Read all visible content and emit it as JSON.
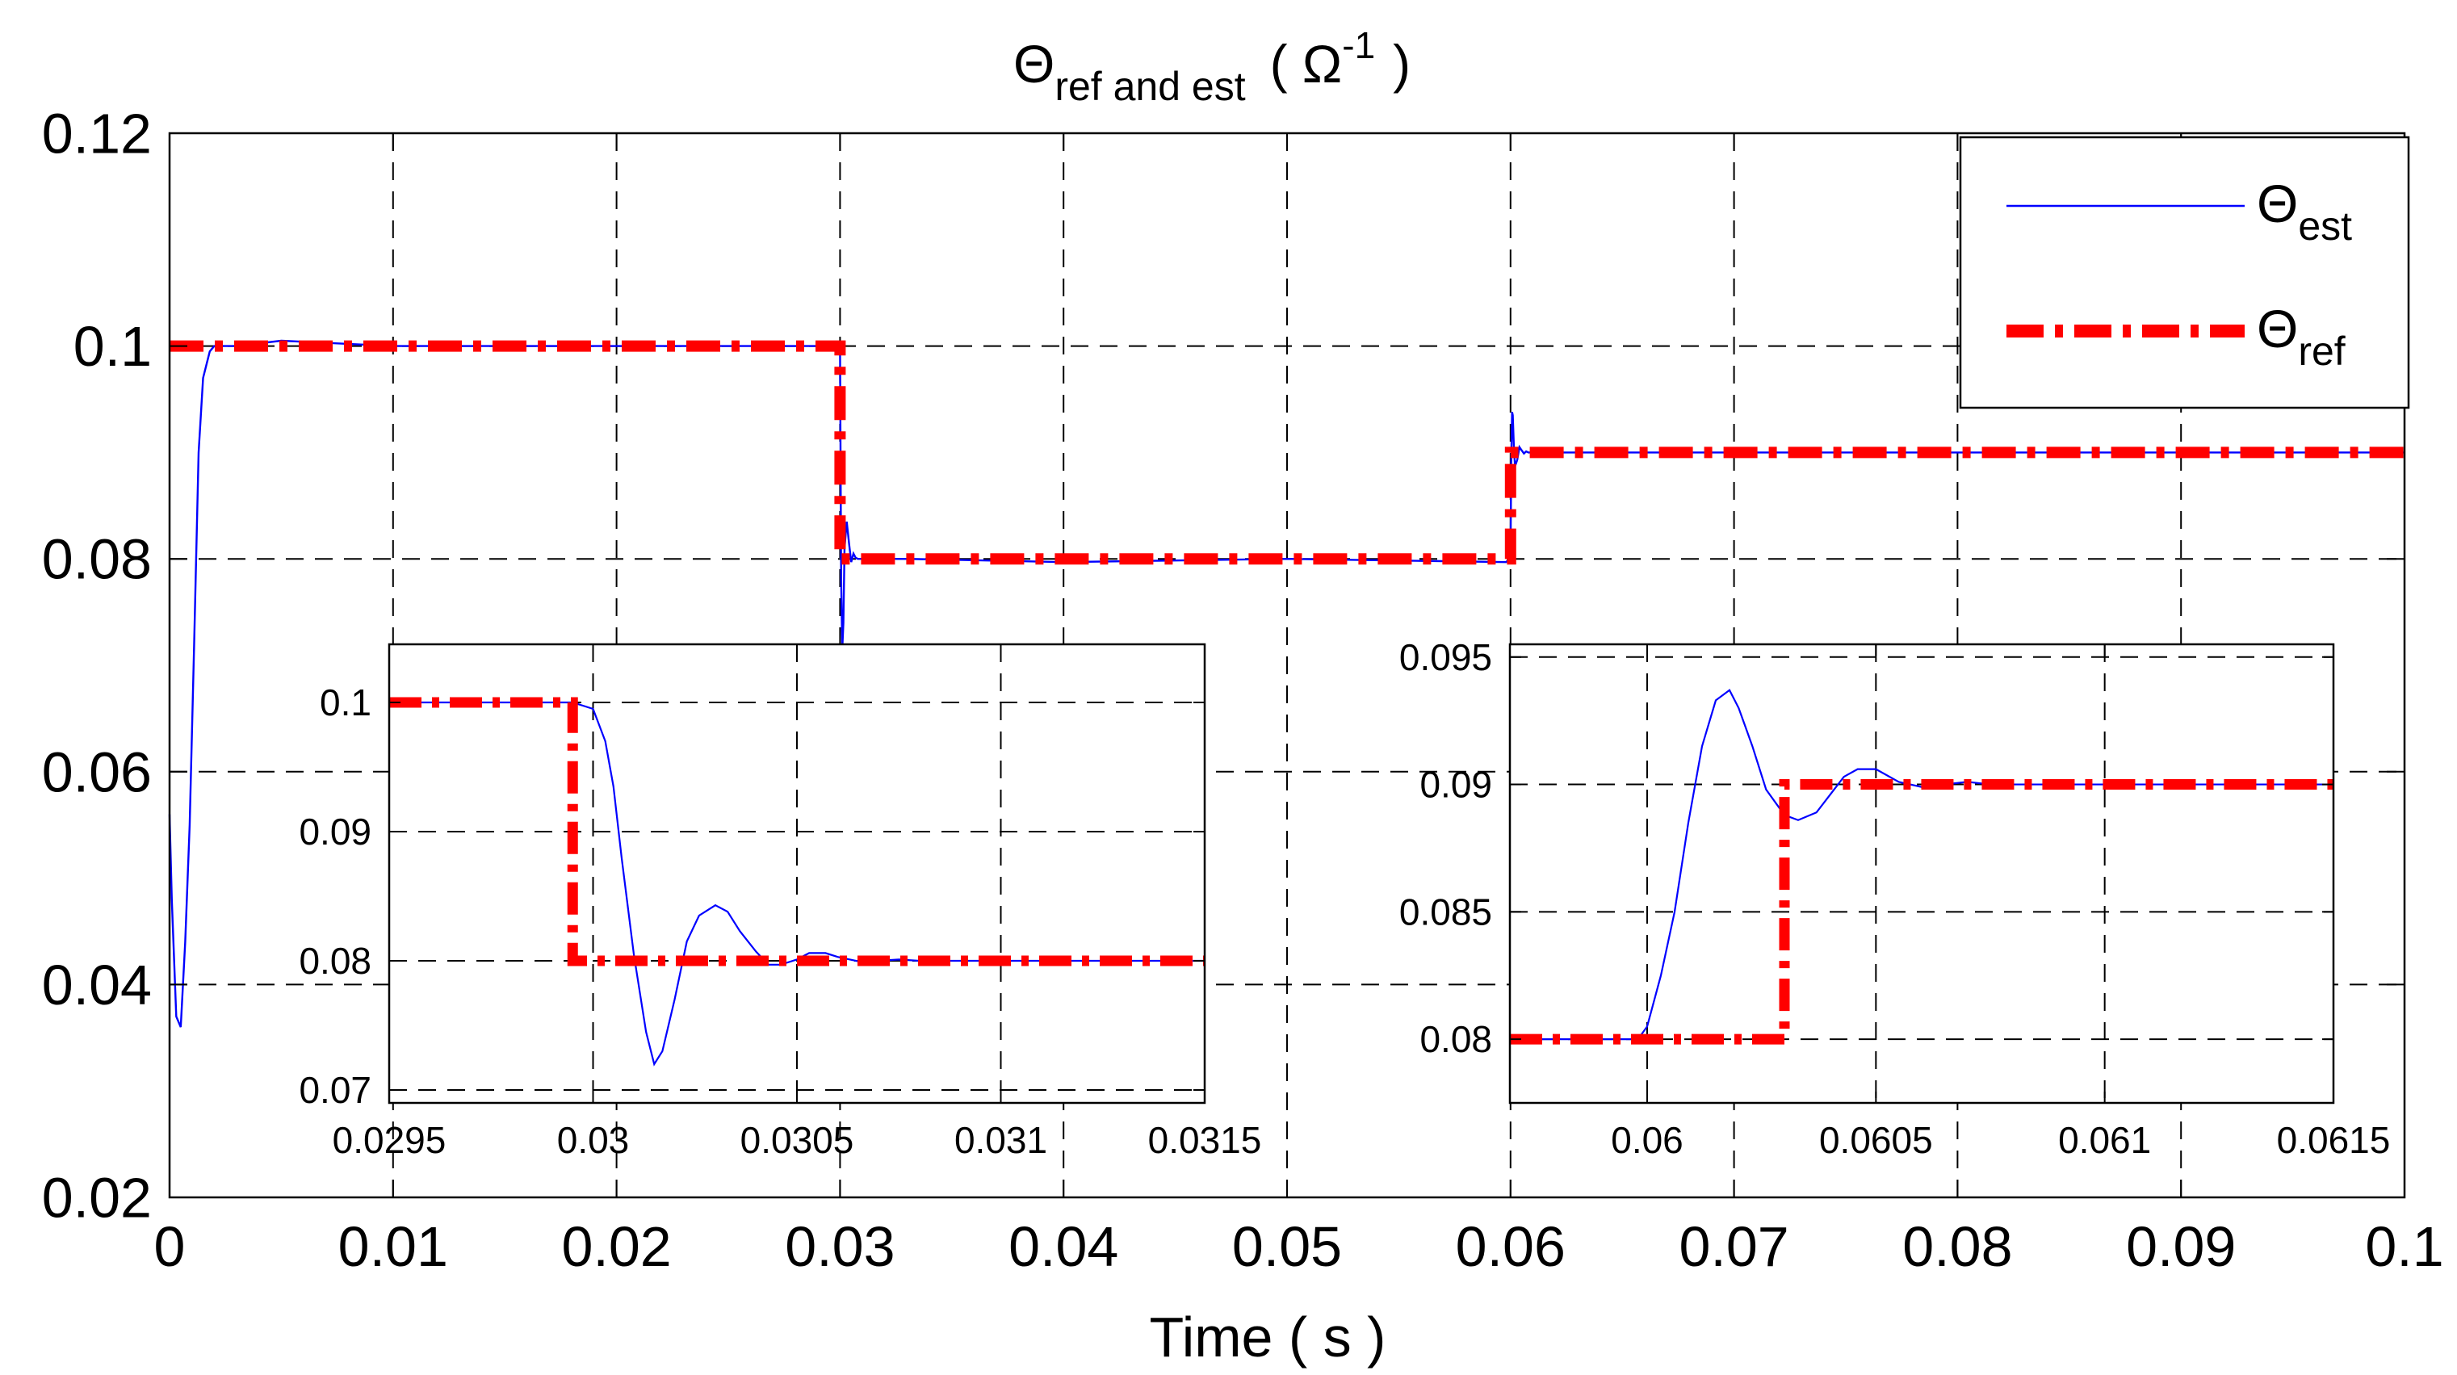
{
  "chart_data": [
    {
      "type": "line",
      "title": "Θref and est (Ω⁻¹)",
      "xlabel": "Time ( s )",
      "ylabel": "",
      "xlim": [
        0,
        0.1
      ],
      "ylim": [
        0.02,
        0.12
      ],
      "x_ticks": [
        "0",
        "0.01",
        "0.02",
        "0.03",
        "0.04",
        "0.05",
        "0.06",
        "0.07",
        "0.08",
        "0.09",
        "0.1"
      ],
      "y_ticks": [
        "0.02",
        "0.04",
        "0.06",
        "0.08",
        "0.1",
        "0.12"
      ],
      "grid": true,
      "legend": {
        "position": "top-right",
        "entries": [
          {
            "base": "Θ",
            "sub": "est"
          },
          {
            "base": "Θ",
            "sub": "ref"
          }
        ]
      },
      "series": [
        {
          "name": "Θest",
          "color": "#0000ff",
          "style": "solid",
          "x": [
            0,
            0.0001,
            0.0003,
            0.0005,
            0.0007,
            0.0009,
            0.0011,
            0.0013,
            0.0015,
            0.0018,
            0.002,
            0.003,
            0.005,
            0.01,
            0.02,
            0.0298,
            0.0299,
            0.03,
            0.03005,
            0.0301,
            0.03015,
            0.0302,
            0.0303,
            0.0304,
            0.0305,
            0.0306,
            0.0307,
            0.0308,
            0.031,
            0.033,
            0.04,
            0.05,
            0.0598,
            0.05995,
            0.06,
            0.06003,
            0.06007,
            0.0601,
            0.06015,
            0.0602,
            0.0603,
            0.0604,
            0.0605,
            0.0606,
            0.0607,
            0.0608,
            0.061,
            0.065,
            0.08,
            0.1
          ],
          "y": [
            0.056,
            0.048,
            0.037,
            0.036,
            0.044,
            0.055,
            0.072,
            0.09,
            0.097,
            0.0995,
            0.1,
            0.1,
            0.1005,
            0.1,
            0.1,
            0.1,
            0.1,
            0.0995,
            0.078,
            0.0715,
            0.074,
            0.081,
            0.0835,
            0.0815,
            0.0797,
            0.0805,
            0.0801,
            0.08,
            0.08,
            0.08,
            0.0797,
            0.08,
            0.0797,
            0.08,
            0.0805,
            0.089,
            0.0938,
            0.0935,
            0.0905,
            0.0887,
            0.0893,
            0.0905,
            0.0902,
            0.0899,
            0.0901,
            0.09,
            0.09,
            0.09,
            0.09,
            0.09
          ]
        },
        {
          "name": "Θref",
          "color": "#ff0000",
          "style": "dash-dot",
          "x": [
            0,
            0.03,
            0.03,
            0.06,
            0.06,
            0.1
          ],
          "y": [
            0.1,
            0.1,
            0.08,
            0.08,
            0.09,
            0.09
          ]
        }
      ]
    },
    {
      "type": "line",
      "title": "",
      "xlim": [
        0.0295,
        0.0315
      ],
      "ylim": [
        0.069,
        0.1045
      ],
      "x_ticks": [
        "0.0295",
        "0.03",
        "0.0305",
        "0.031",
        "0.0315"
      ],
      "y_ticks": [
        "0.07",
        "0.08",
        "0.09",
        "0.1"
      ],
      "grid": true,
      "series": [
        {
          "name": "Θest",
          "color": "#0000ff",
          "style": "solid",
          "x": [
            0.0295,
            0.02995,
            0.03,
            0.03003,
            0.03005,
            0.03007,
            0.0301,
            0.03013,
            0.03015,
            0.03017,
            0.0302,
            0.03023,
            0.03026,
            0.0303,
            0.03033,
            0.03036,
            0.0304,
            0.03043,
            0.03046,
            0.0305,
            0.03053,
            0.03057,
            0.0306,
            0.03063,
            0.03066,
            0.0307,
            0.03075,
            0.0308,
            0.031,
            0.0315
          ],
          "y": [
            0.1,
            0.1,
            0.0995,
            0.097,
            0.0935,
            0.088,
            0.0805,
            0.0745,
            0.072,
            0.073,
            0.077,
            0.0815,
            0.0835,
            0.0843,
            0.0838,
            0.0823,
            0.0807,
            0.0797,
            0.0797,
            0.0801,
            0.0806,
            0.0806,
            0.0803,
            0.0801,
            0.0799,
            0.08,
            0.0801,
            0.08,
            0.08,
            0.08
          ]
        },
        {
          "name": "Θref",
          "color": "#ff0000",
          "style": "dash-dot",
          "x": [
            0.0295,
            0.02995,
            0.02995,
            0.0315
          ],
          "y": [
            0.1,
            0.1,
            0.08,
            0.08
          ]
        }
      ]
    },
    {
      "type": "line",
      "title": "",
      "xlim": [
        0.0597,
        0.0615
      ],
      "ylim": [
        0.0775,
        0.0955
      ],
      "x_ticks": [
        "0.06",
        "0.0605",
        "0.061",
        "0.0615"
      ],
      "y_ticks": [
        "0.08",
        "0.085",
        "0.09",
        "0.095"
      ],
      "grid": true,
      "series": [
        {
          "name": "Θest",
          "color": "#0000ff",
          "style": "solid",
          "x": [
            0.0597,
            0.05998,
            0.06,
            0.06003,
            0.06006,
            0.06009,
            0.06012,
            0.06015,
            0.06018,
            0.0602,
            0.06023,
            0.06026,
            0.0603,
            0.06033,
            0.06037,
            0.0604,
            0.06043,
            0.06046,
            0.0605,
            0.06055,
            0.0606,
            0.06065,
            0.0607,
            0.06075,
            0.061,
            0.0615
          ],
          "y": [
            0.08,
            0.08,
            0.0805,
            0.0825,
            0.085,
            0.0885,
            0.0915,
            0.0933,
            0.0937,
            0.093,
            0.0915,
            0.0898,
            0.0888,
            0.0886,
            0.0889,
            0.0896,
            0.0903,
            0.0906,
            0.0906,
            0.0901,
            0.0899,
            0.09,
            0.0901,
            0.09,
            0.09,
            0.09
          ]
        },
        {
          "name": "Θref",
          "color": "#ff0000",
          "style": "dash-dot",
          "x": [
            0.0597,
            0.0603,
            0.0603,
            0.0615
          ],
          "y": [
            0.08,
            0.08,
            0.09,
            0.09
          ]
        }
      ]
    }
  ]
}
